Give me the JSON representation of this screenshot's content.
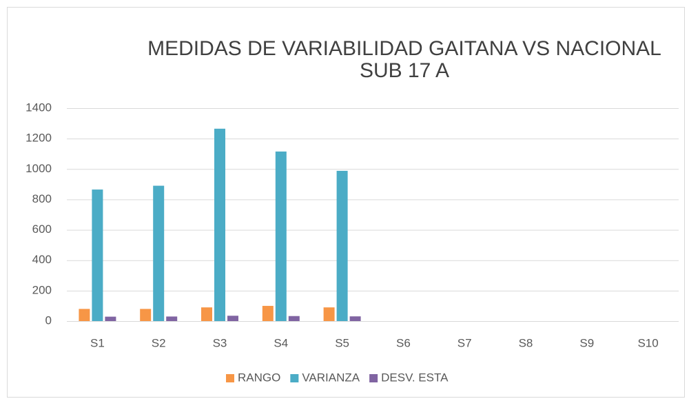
{
  "chart_data": {
    "type": "bar",
    "title": "MEDIDAS DE VARIABILIDAD GAITANA VS NACIONAL",
    "subtitle": "SUB 17 A",
    "categories": [
      "S1",
      "S2",
      "S3",
      "S4",
      "S5",
      "S6",
      "S7",
      "S8",
      "S9",
      "S10"
    ],
    "series": [
      {
        "name": "RANGO",
        "color": "#f79646",
        "values": [
          80,
          80,
          90,
          100,
          90,
          null,
          null,
          null,
          null,
          null
        ]
      },
      {
        "name": "VARIANZA",
        "color": "#4bacc6",
        "values": [
          865,
          890,
          1265,
          1115,
          988,
          null,
          null,
          null,
          null,
          null
        ]
      },
      {
        "name": "DESV. ESTA",
        "color": "#8064a2",
        "values": [
          29,
          30,
          35,
          33,
          31,
          null,
          null,
          null,
          null,
          null
        ]
      }
    ],
    "ylim": [
      0,
      1400
    ],
    "yticks": [
      0,
      200,
      400,
      600,
      800,
      1000,
      1200,
      1400
    ],
    "grid": true,
    "legend": "bottom"
  }
}
